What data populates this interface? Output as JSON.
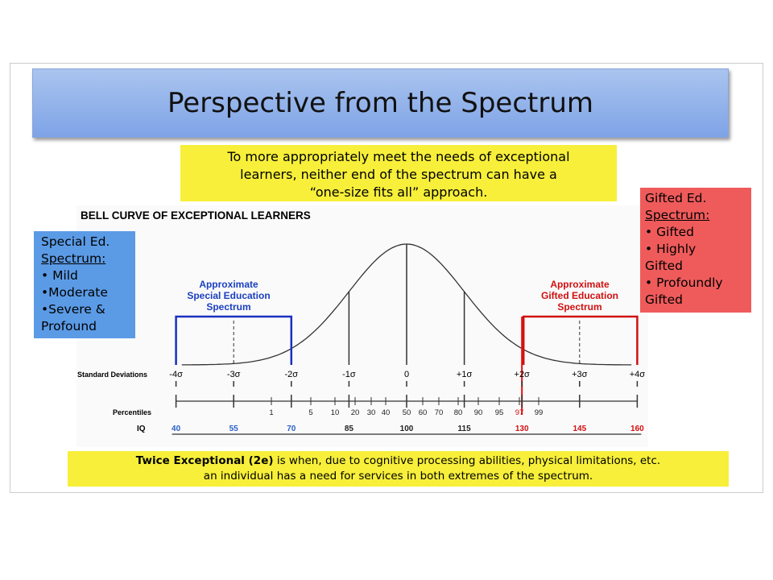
{
  "title": "Perspective from the Spectrum",
  "intro": [
    "To more appropriately meet the needs of exceptional",
    "learners, neither end of the spectrum can have a",
    "“one-size fits all” approach."
  ],
  "special_box": [
    "Special Ed.",
    "Spectrum:",
    "• Mild",
    "•Moderate",
    "•Severe &",
    "Profound"
  ],
  "gifted_box": [
    "Gifted Ed.",
    "Spectrum:",
    "• Gifted",
    "• Highly",
    "Gifted",
    "• Profoundly",
    "Gifted"
  ],
  "diagram": {
    "title": "BELL CURVE OF EXCEPTIONAL LEARNERS",
    "special_label": [
      "Approximate",
      "Special Education",
      "Spectrum"
    ],
    "gifted_label": [
      "Approximate",
      "Gifted Education",
      "Spectrum"
    ],
    "sd_label": "Standard Deviations",
    "sd_ticks": [
      "-4σ",
      "-3σ",
      "-2σ",
      "-1σ",
      "0",
      "+1σ",
      "+2σ",
      "+3σ",
      "+4σ"
    ],
    "percentile_label": "Percentiles",
    "percentiles": [
      "1",
      "5",
      "10",
      "20",
      "30",
      "40",
      "50",
      "60",
      "70",
      "80",
      "90",
      "95",
      "97",
      "99"
    ],
    "iq_label": "IQ",
    "iq": [
      "40",
      "55",
      "70",
      "85",
      "100",
      "115",
      "130",
      "145",
      "160"
    ]
  },
  "footer": {
    "bold": "Twice Exceptional (2e)",
    "line1": " is when, due to cognitive processing abilities, physical limitations, etc.",
    "line2": "an individual has a need for services in both extremes of the spectrum."
  }
}
